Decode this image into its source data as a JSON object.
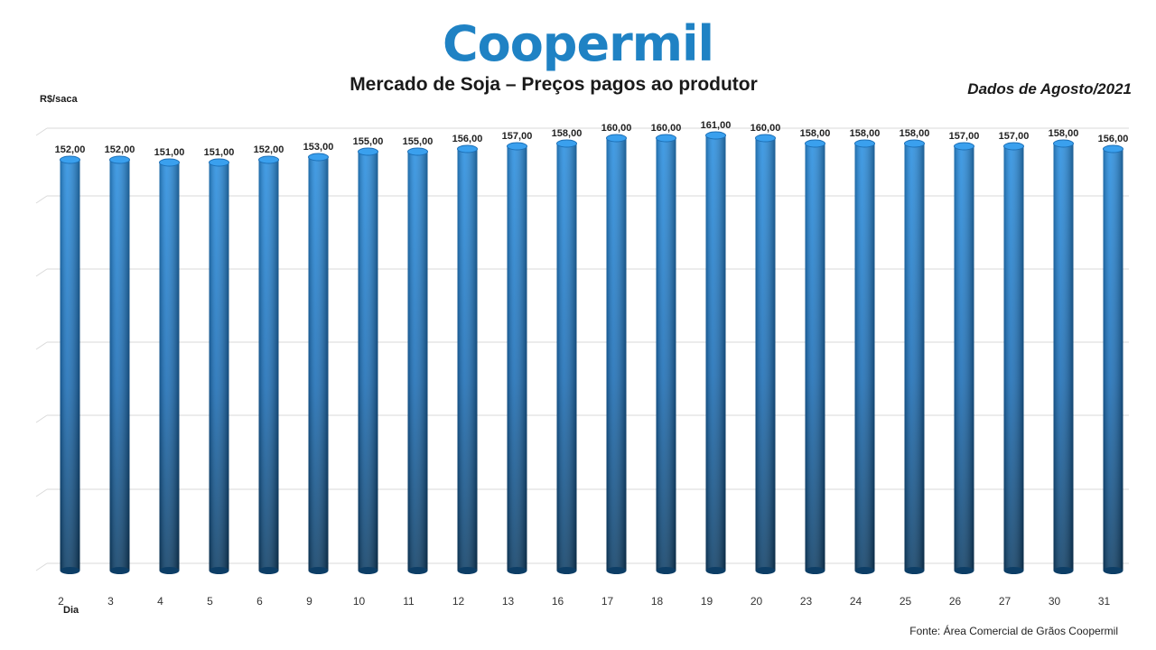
{
  "logo_text": "Coopermil",
  "chart_data": {
    "type": "bar",
    "title": "Mercado de Soja – Preços pagos ao produtor",
    "subtitle": "Dados de Agosto/2021",
    "ylabel": "R$/saca",
    "xlabel": "Dia",
    "source": "Fonte:  Área Comercial de Grãos Coopermil",
    "categories": [
      "2",
      "3",
      "4",
      "5",
      "6",
      "9",
      "10",
      "11",
      "12",
      "13",
      "16",
      "17",
      "18",
      "19",
      "20",
      "23",
      "24",
      "25",
      "26",
      "27",
      "30",
      "31"
    ],
    "values": [
      152,
      152,
      151,
      151,
      152,
      153,
      155,
      155,
      156,
      157,
      158,
      160,
      160,
      161,
      160,
      158,
      158,
      158,
      157,
      157,
      158,
      156
    ],
    "data_labels": [
      "152,00",
      "152,00",
      "151,00",
      "151,00",
      "152,00",
      "153,00",
      "155,00",
      "155,00",
      "156,00",
      "157,00",
      "158,00",
      "160,00",
      "160,00",
      "161,00",
      "160,00",
      "158,00",
      "158,00",
      "158,00",
      "157,00",
      "157,00",
      "158,00",
      "156,00"
    ],
    "grid": true,
    "colors": {
      "bar_top": "#2a8fe0",
      "bar_bottom": "#0d3e66",
      "grid": "#d9d9d9"
    }
  }
}
